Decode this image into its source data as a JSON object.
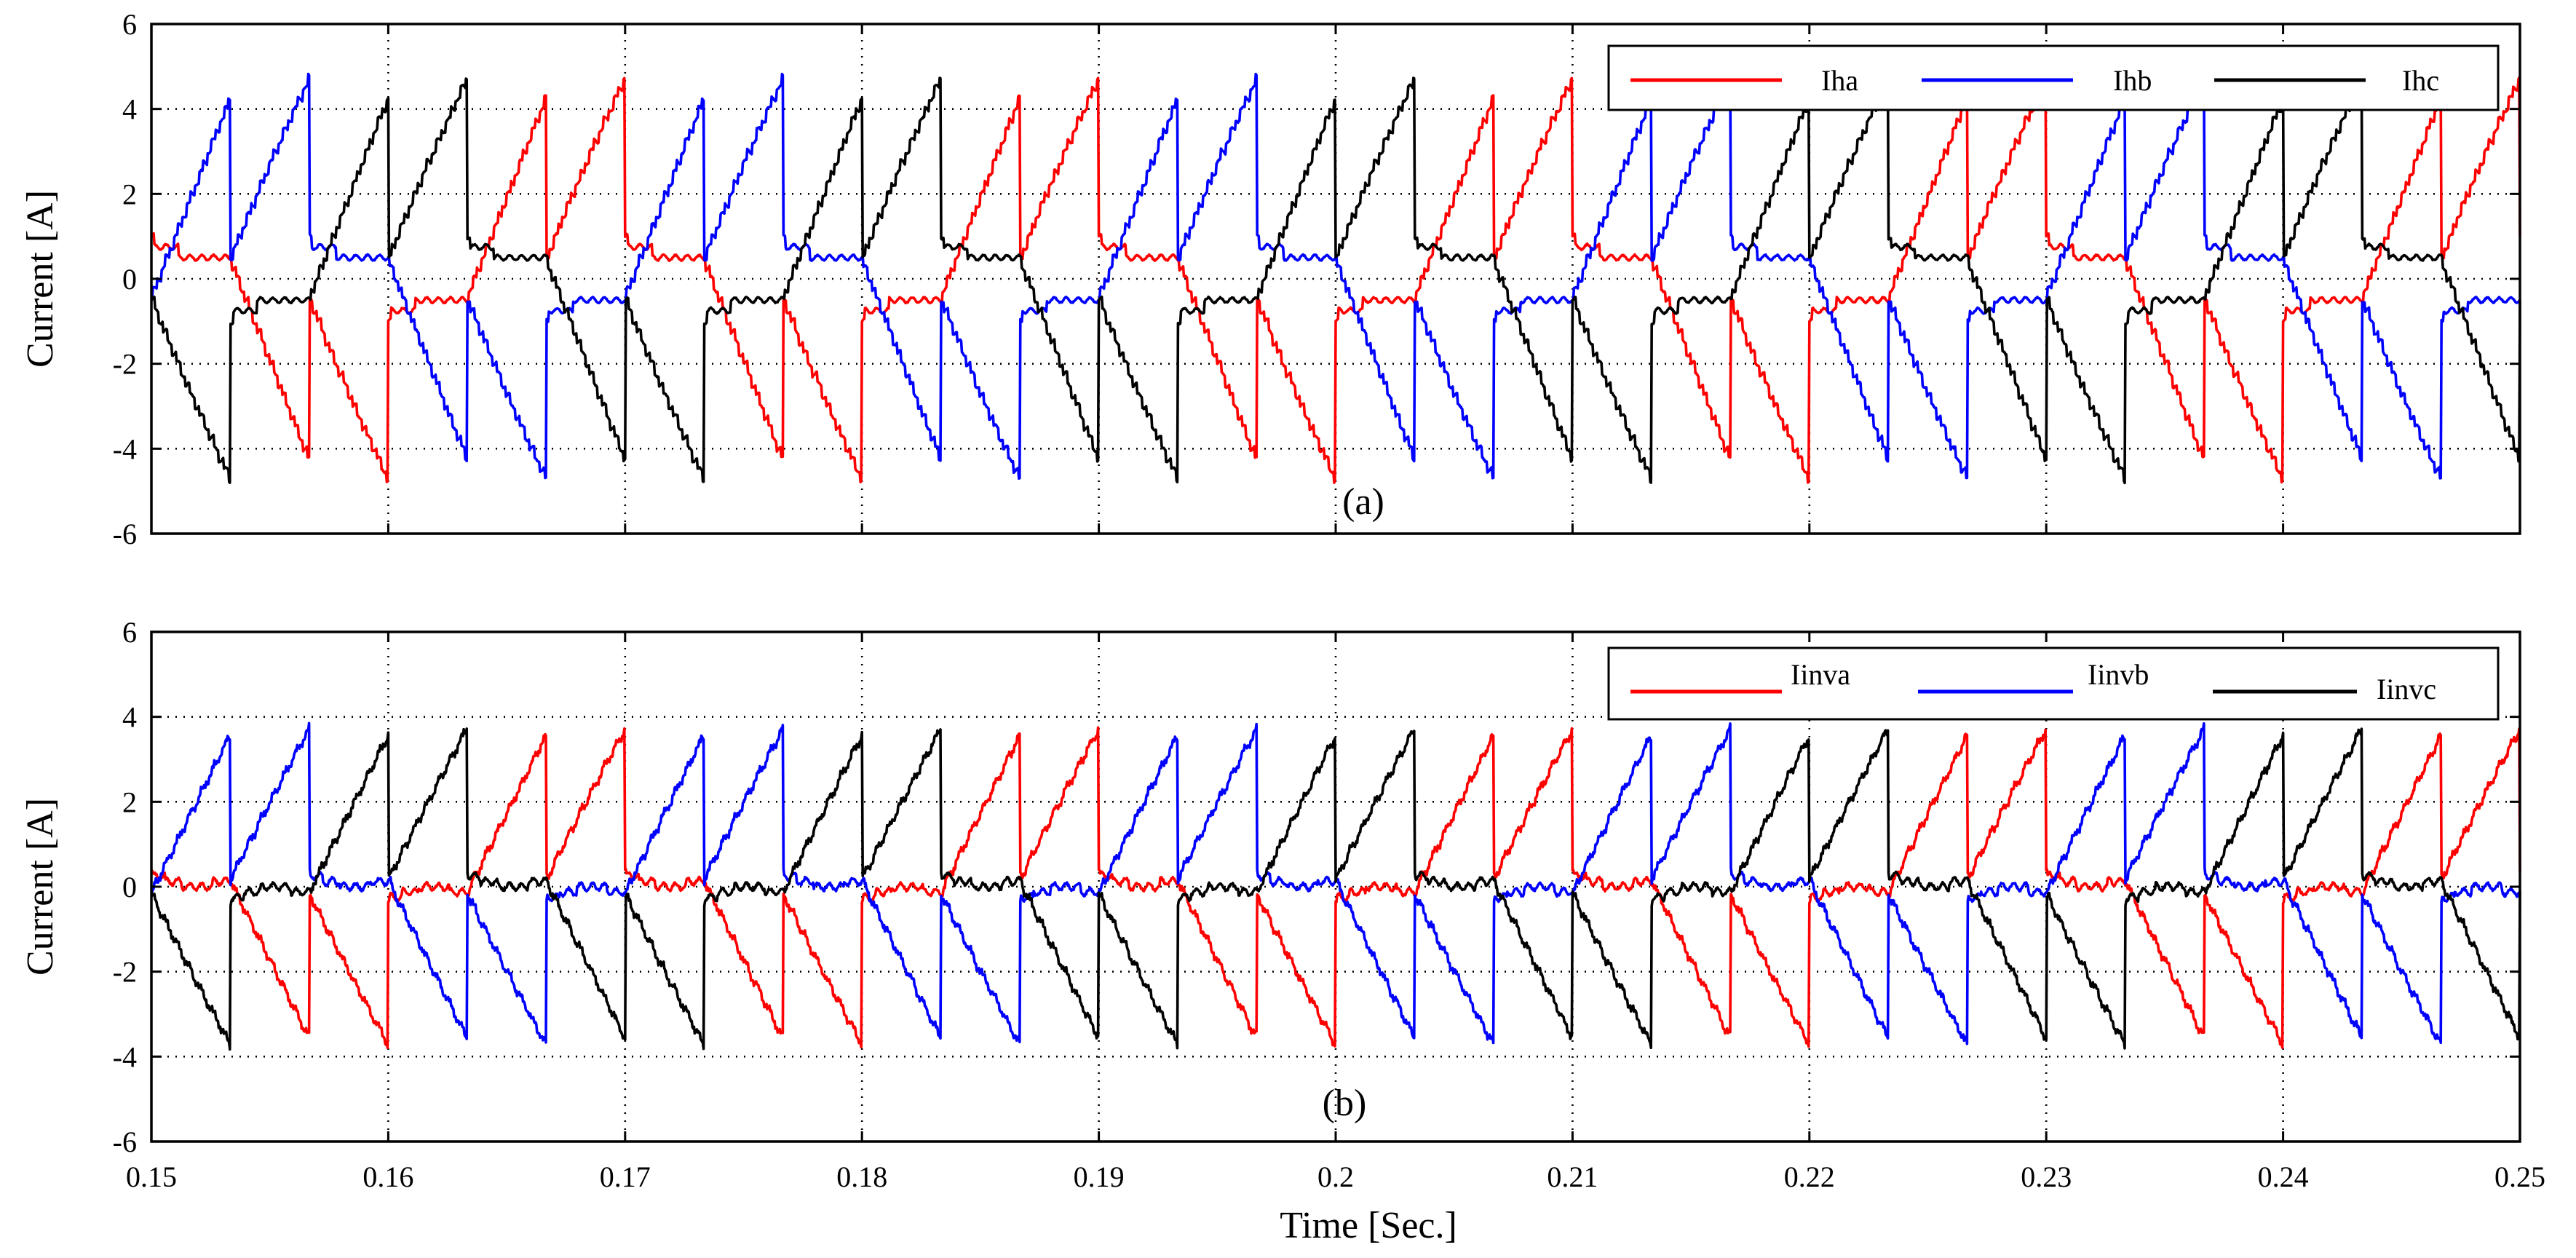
{
  "chart_data": [
    {
      "type": "line",
      "panel_label": "(a)",
      "title": "",
      "xlabel": "",
      "ylabel": "Current [A]",
      "xlim": [
        0.15,
        0.25
      ],
      "ylim": [
        -6,
        6
      ],
      "xticks": [
        0.15,
        0.16,
        0.17,
        0.18,
        0.19,
        0.2,
        0.21,
        0.22,
        0.23,
        0.24,
        0.25
      ],
      "xtick_labels": [],
      "yticks": [
        -6,
        -4,
        -2,
        0,
        2,
        4,
        6
      ],
      "ytick_labels": [
        "-6",
        "-4",
        "-2",
        "0",
        "2",
        "4",
        "6"
      ],
      "grid": true,
      "legend_position": "top-right",
      "legend_style": "above",
      "fundamental_hz": 50,
      "series": [
        {
          "name": "Iha",
          "color": "#ff0000",
          "phase_deg": 0,
          "fundamental_peak": 0.9,
          "stair_steps": 2,
          "stair_peak": 3.8,
          "offset": 0,
          "ripple": 0.06,
          "noise": 0.03
        },
        {
          "name": "Ihb",
          "color": "#0000ff",
          "phase_deg": -120,
          "fundamental_peak": 0.9,
          "stair_steps": 2,
          "stair_peak": 3.8,
          "offset": 0,
          "ripple": 0.06,
          "noise": 0.03
        },
        {
          "name": "Ihc",
          "color": "#000000",
          "phase_deg": 120,
          "fundamental_peak": 0.9,
          "stair_steps": 2,
          "stair_peak": 3.8,
          "offset": 0,
          "ripple": 0.06,
          "noise": 0.03
        }
      ]
    },
    {
      "type": "line",
      "panel_label": "(b)",
      "title": "",
      "xlabel": "Time [Sec.]",
      "ylabel": "Current [A]",
      "xlim": [
        0.15,
        0.25
      ],
      "ylim": [
        -6,
        6
      ],
      "xticks": [
        0.15,
        0.16,
        0.17,
        0.18,
        0.19,
        0.2,
        0.21,
        0.22,
        0.23,
        0.24,
        0.25
      ],
      "xtick_labels": [
        "0.15",
        "0.16",
        "0.17",
        "0.18",
        "0.19",
        "0.2",
        "0.21",
        "0.22",
        "0.23",
        "0.24",
        "0.25"
      ],
      "yticks": [
        -6,
        -4,
        -2,
        0,
        2,
        4,
        6
      ],
      "ytick_labels": [
        "-6",
        "-4",
        "-2",
        "0",
        "2",
        "4",
        "6"
      ],
      "grid": true,
      "legend_position": "top-right",
      "legend_style": "inline",
      "fundamental_hz": 50,
      "series": [
        {
          "name": "Iinva",
          "color": "#ff0000",
          "phase_deg": 0,
          "fundamental_peak": 0.3,
          "stair_steps": 1,
          "stair_peak": 3.4,
          "offset": 0.2,
          "ripple": 0.08,
          "noise": 0.06
        },
        {
          "name": "Iinvb",
          "color": "#0000ff",
          "phase_deg": -120,
          "fundamental_peak": 0.3,
          "stair_steps": 1,
          "stair_peak": 3.4,
          "offset": 0.2,
          "ripple": 0.08,
          "noise": 0.06
        },
        {
          "name": "Iinvc",
          "color": "#000000",
          "phase_deg": 120,
          "fundamental_peak": 0.3,
          "stair_steps": 1,
          "stair_peak": 3.4,
          "offset": 0.2,
          "ripple": 0.08,
          "noise": 0.06
        }
      ]
    }
  ]
}
